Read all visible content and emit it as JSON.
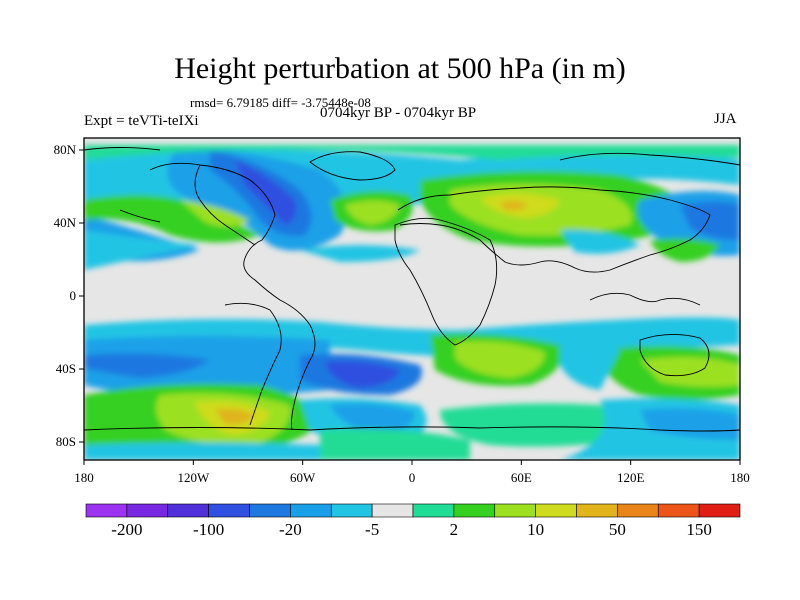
{
  "header": {
    "title": "Height perturbation at 500 hPa (in m)",
    "stats": "rmsd= 6.79185 diff= -3.75448e-08",
    "experiment": "Expt = teVTi-teIXi",
    "period": "0704kyr BP - 0704kyr BP",
    "season": "JJA"
  },
  "map": {
    "lat_ticks": [
      "80N",
      "40N",
      "0",
      "40S",
      "80S"
    ],
    "lon_ticks": [
      "180",
      "120W",
      "60W",
      "0",
      "60E",
      "120E",
      "180"
    ]
  },
  "colorbar": {
    "colors": [
      "#9b33f0",
      "#7828e0",
      "#5030d8",
      "#2f50e0",
      "#1e78e0",
      "#1aa0e8",
      "#22c4e4",
      "#e6e6e6",
      "#20dc96",
      "#36d020",
      "#9ce020",
      "#cfdb1e",
      "#e0b41a",
      "#e8841a",
      "#ec5418",
      "#e01e14"
    ],
    "labels": [
      "-200",
      "-100",
      "-20",
      "-5",
      "2",
      "10",
      "50",
      "150"
    ]
  }
}
